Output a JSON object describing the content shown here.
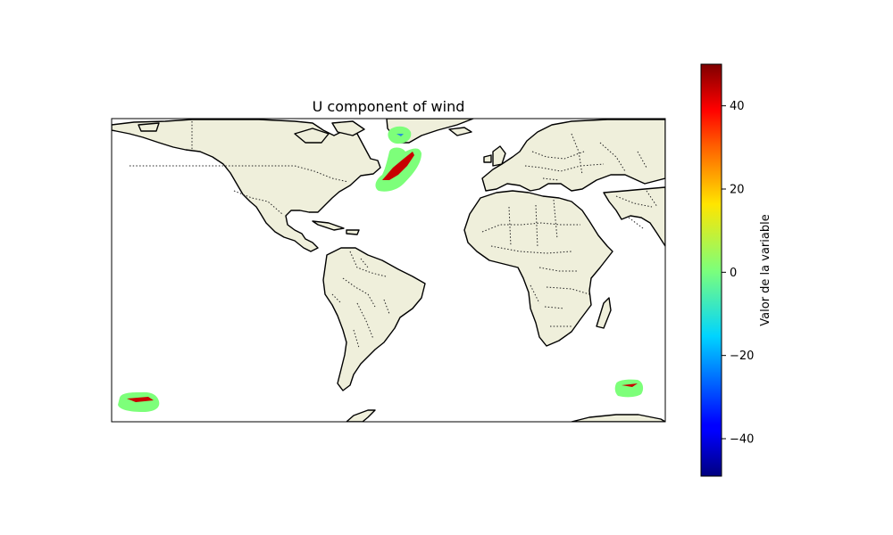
{
  "title": "U component of wind",
  "colorbar": {
    "label": "Valor de la variable",
    "colormap": "jet",
    "vmin": -49,
    "vmax": 50,
    "ticks": [
      {
        "value": 40,
        "label": "40"
      },
      {
        "value": 20,
        "label": "20"
      },
      {
        "value": 0,
        "label": "0"
      },
      {
        "value": -20,
        "label": "−20"
      },
      {
        "value": -40,
        "label": "−40"
      }
    ]
  },
  "colors": {
    "land": "#efefdb",
    "ocean": "#ffffff",
    "wind_low": "#7dff7a",
    "wind_high": "#c80000"
  }
}
